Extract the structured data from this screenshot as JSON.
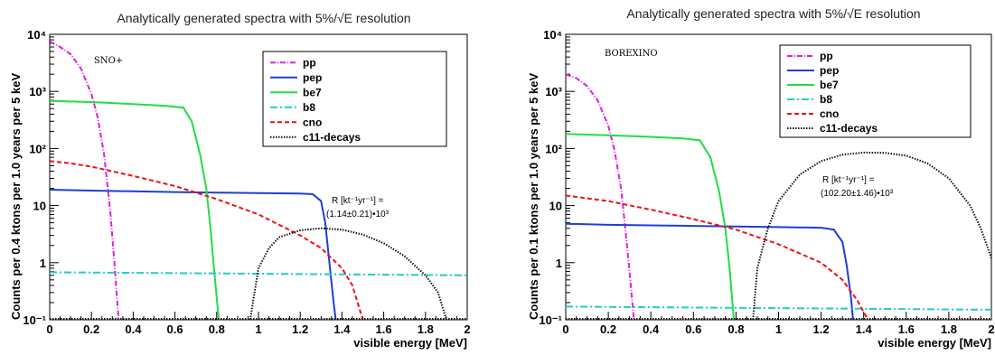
{
  "chart_data": [
    {
      "type": "line",
      "title": "Analytically generated spectra with 5%/√E resolution",
      "xlabel": "visible energy [MeV]",
      "ylabel": "Counts per 0.4 ktons per 1.0 years per 5 keV",
      "xlim": [
        0,
        2
      ],
      "ylim": [
        0.1,
        10000
      ],
      "yscale": "log",
      "x_ticks": [
        "0",
        "0.2",
        "0.4",
        "0.6",
        "0.8",
        "1",
        "1.2",
        "1.4",
        "1.6",
        "1.8",
        "2"
      ],
      "y_ticks": [
        "10⁻¹",
        "1",
        "10",
        "10²",
        "10³",
        "10⁴"
      ],
      "detector": "SNO+",
      "legend_position": "top-right",
      "rate_label": "R [kt⁻¹yr⁻¹] =",
      "rate_value": "(1.14±0.21)•10³",
      "series": [
        {
          "name": "pp",
          "color": "#dd22dd",
          "dash": "6 2 1 2",
          "points": [
            [
              0,
              7500
            ],
            [
              0.05,
              6000
            ],
            [
              0.1,
              4500
            ],
            [
              0.15,
              2500
            ],
            [
              0.2,
              900
            ],
            [
              0.23,
              350
            ],
            [
              0.26,
              80
            ],
            [
              0.29,
              8
            ],
            [
              0.31,
              1
            ],
            [
              0.33,
              0.1
            ]
          ]
        },
        {
          "name": "pep",
          "color": "#1f3fd0",
          "dash": "",
          "points": [
            [
              0,
              19
            ],
            [
              0.2,
              18.3
            ],
            [
              0.4,
              17.8
            ],
            [
              0.6,
              17.3
            ],
            [
              0.8,
              16.9
            ],
            [
              1.0,
              16.6
            ],
            [
              1.2,
              16.3
            ],
            [
              1.26,
              15.8
            ],
            [
              1.3,
              12
            ],
            [
              1.32,
              5
            ],
            [
              1.34,
              1
            ],
            [
              1.36,
              0.2
            ],
            [
              1.37,
              0.1
            ]
          ]
        },
        {
          "name": "be7",
          "color": "#22dd44",
          "dash": "",
          "points": [
            [
              0,
              680
            ],
            [
              0.2,
              650
            ],
            [
              0.4,
              600
            ],
            [
              0.55,
              560
            ],
            [
              0.64,
              520
            ],
            [
              0.68,
              300
            ],
            [
              0.72,
              80
            ],
            [
              0.75,
              20
            ],
            [
              0.77,
              4
            ],
            [
              0.79,
              0.6
            ],
            [
              0.81,
              0.1
            ]
          ]
        },
        {
          "name": "b8",
          "color": "#22cccc",
          "dash": "8 3 2 3",
          "points": [
            [
              0,
              0.68
            ],
            [
              0.5,
              0.66
            ],
            [
              1.0,
              0.64
            ],
            [
              1.5,
              0.62
            ],
            [
              2.0,
              0.6
            ]
          ]
        },
        {
          "name": "cno",
          "color": "#ee1111",
          "dash": "5 3",
          "points": [
            [
              0,
              60
            ],
            [
              0.1,
              55
            ],
            [
              0.2,
              48
            ],
            [
              0.4,
              33
            ],
            [
              0.6,
              22
            ],
            [
              0.8,
              13
            ],
            [
              1.0,
              7
            ],
            [
              1.2,
              3
            ],
            [
              1.3,
              1.8
            ],
            [
              1.4,
              0.8
            ],
            [
              1.45,
              0.4
            ],
            [
              1.5,
              0.1
            ]
          ]
        },
        {
          "name": "c11-decays",
          "color": "#111111",
          "dash": "1.5 1.5",
          "points": [
            [
              0.96,
              0.1
            ],
            [
              1.0,
              0.8
            ],
            [
              1.05,
              1.8
            ],
            [
              1.1,
              2.8
            ],
            [
              1.2,
              3.7
            ],
            [
              1.3,
              4.0
            ],
            [
              1.4,
              3.8
            ],
            [
              1.5,
              3.1
            ],
            [
              1.6,
              2.2
            ],
            [
              1.7,
              1.3
            ],
            [
              1.8,
              0.6
            ],
            [
              1.86,
              0.3
            ],
            [
              1.9,
              0.1
            ]
          ]
        }
      ]
    },
    {
      "type": "line",
      "title": "Analytically generated spectra with 5%/√E resolution",
      "xlabel": "visible energy [MeV]",
      "ylabel": "Counts per 0.1 ktons per 1.0 years per 5 keV",
      "xlim": [
        0,
        2
      ],
      "ylim": [
        0.1,
        10000
      ],
      "yscale": "log",
      "x_ticks": [
        "0",
        "0.2",
        "0.4",
        "0.6",
        "0.8",
        "1",
        "1.2",
        "1.4",
        "1.6",
        "1.8",
        "2"
      ],
      "y_ticks": [
        "10⁻¹",
        "1",
        "10",
        "10²",
        "10³",
        "10⁴"
      ],
      "detector": "BOREXINO",
      "legend_position": "top-right",
      "rate_label": "R [kt⁻¹yr⁻¹] =",
      "rate_value": "(102.20±1.46)•10³",
      "series": [
        {
          "name": "pp",
          "color": "#dd22dd",
          "dash": "6 2 1 2",
          "points": [
            [
              0,
              2000
            ],
            [
              0.05,
              1700
            ],
            [
              0.1,
              1250
            ],
            [
              0.15,
              700
            ],
            [
              0.2,
              250
            ],
            [
              0.23,
              90
            ],
            [
              0.26,
              20
            ],
            [
              0.28,
              4
            ],
            [
              0.3,
              0.7
            ],
            [
              0.32,
              0.1
            ]
          ]
        },
        {
          "name": "pep",
          "color": "#1f3fd0",
          "dash": "",
          "points": [
            [
              0,
              4.8
            ],
            [
              0.2,
              4.6
            ],
            [
              0.4,
              4.5
            ],
            [
              0.6,
              4.4
            ],
            [
              0.8,
              4.3
            ],
            [
              1.0,
              4.2
            ],
            [
              1.2,
              4.1
            ],
            [
              1.26,
              3.8
            ],
            [
              1.3,
              2.3
            ],
            [
              1.32,
              0.9
            ],
            [
              1.34,
              0.25
            ],
            [
              1.35,
              0.1
            ]
          ]
        },
        {
          "name": "be7",
          "color": "#22dd44",
          "dash": "",
          "points": [
            [
              0,
              180
            ],
            [
              0.2,
              170
            ],
            [
              0.4,
              160
            ],
            [
              0.55,
              150
            ],
            [
              0.63,
              140
            ],
            [
              0.68,
              70
            ],
            [
              0.72,
              18
            ],
            [
              0.75,
              4
            ],
            [
              0.77,
              0.8
            ],
            [
              0.79,
              0.1
            ]
          ]
        },
        {
          "name": "b8",
          "color": "#22cccc",
          "dash": "8 3 2 3",
          "points": [
            [
              0,
              0.17
            ],
            [
              0.5,
              0.165
            ],
            [
              1.0,
              0.16
            ],
            [
              1.5,
              0.155
            ],
            [
              2.0,
              0.15
            ]
          ]
        },
        {
          "name": "cno",
          "color": "#ee1111",
          "dash": "5 3",
          "points": [
            [
              0,
              15
            ],
            [
              0.2,
              12
            ],
            [
              0.4,
              8.5
            ],
            [
              0.6,
              5.8
            ],
            [
              0.8,
              3.8
            ],
            [
              1.0,
              2.1
            ],
            [
              1.2,
              1.0
            ],
            [
              1.3,
              0.5
            ],
            [
              1.37,
              0.22
            ],
            [
              1.42,
              0.1
            ]
          ]
        },
        {
          "name": "c11-decays",
          "color": "#111111",
          "dash": "1.5 1.5",
          "points": [
            [
              0.88,
              0.1
            ],
            [
              0.9,
              0.8
            ],
            [
              0.95,
              4
            ],
            [
              1.0,
              12
            ],
            [
              1.1,
              35
            ],
            [
              1.2,
              60
            ],
            [
              1.3,
              78
            ],
            [
              1.4,
              85
            ],
            [
              1.5,
              84
            ],
            [
              1.6,
              75
            ],
            [
              1.7,
              55
            ],
            [
              1.8,
              30
            ],
            [
              1.9,
              10
            ],
            [
              1.95,
              4
            ],
            [
              2.0,
              1.2
            ]
          ]
        }
      ]
    }
  ]
}
